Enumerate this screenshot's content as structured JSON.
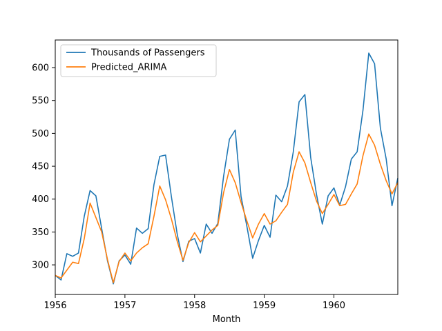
{
  "chart_data": {
    "type": "line",
    "xlabel": "Month",
    "ylabel": "",
    "xlim": [
      "1956-01",
      "1960-12"
    ],
    "ylim": [
      255,
      642
    ],
    "x_ticks": [
      "1956",
      "1957",
      "1958",
      "1959",
      "1960"
    ],
    "y_ticks": [
      300,
      350,
      400,
      450,
      500,
      550,
      600
    ],
    "grid": false,
    "legend_position": "upper-left",
    "x": [
      "1956-01",
      "1956-02",
      "1956-03",
      "1956-04",
      "1956-05",
      "1956-06",
      "1956-07",
      "1956-08",
      "1956-09",
      "1956-10",
      "1956-11",
      "1956-12",
      "1957-01",
      "1957-02",
      "1957-03",
      "1957-04",
      "1957-05",
      "1957-06",
      "1957-07",
      "1957-08",
      "1957-09",
      "1957-10",
      "1957-11",
      "1957-12",
      "1958-01",
      "1958-02",
      "1958-03",
      "1958-04",
      "1958-05",
      "1958-06",
      "1958-07",
      "1958-08",
      "1958-09",
      "1958-10",
      "1958-11",
      "1958-12",
      "1959-01",
      "1959-02",
      "1959-03",
      "1959-04",
      "1959-05",
      "1959-06",
      "1959-07",
      "1959-08",
      "1959-09",
      "1959-10",
      "1959-11",
      "1959-12",
      "1960-01",
      "1960-02",
      "1960-03",
      "1960-04",
      "1960-05",
      "1960-06",
      "1960-07",
      "1960-08",
      "1960-09",
      "1960-10",
      "1960-11",
      "1960-12"
    ],
    "series": [
      {
        "name": "Thousands of Passengers",
        "color": "#1f77b4",
        "values": [
          284,
          277,
          317,
          313,
          318,
          374,
          413,
          405,
          355,
          306,
          271,
          306,
          315,
          301,
          356,
          348,
          355,
          422,
          465,
          467,
          404,
          347,
          305,
          336,
          340,
          318,
          362,
          348,
          363,
          435,
          491,
          505,
          404,
          359,
          310,
          337,
          360,
          342,
          406,
          396,
          420,
          472,
          548,
          559,
          463,
          407,
          362,
          405,
          417,
          391,
          419,
          461,
          472,
          535,
          622,
          606,
          508,
          461,
          390,
          432
        ]
      },
      {
        "name": "Predicted_ARIMA",
        "color": "#ff7f0e",
        "values": [
          284,
          280,
          292,
          304,
          302,
          340,
          394,
          372,
          350,
          308,
          273,
          305,
          318,
          306,
          318,
          326,
          332,
          374,
          420,
          399,
          370,
          336,
          307,
          334,
          349,
          335,
          344,
          353,
          360,
          410,
          445,
          425,
          395,
          367,
          341,
          362,
          378,
          362,
          367,
          380,
          392,
          441,
          472,
          455,
          425,
          397,
          378,
          392,
          407,
          390,
          392,
          408,
          423,
          466,
          499,
          482,
          453,
          428,
          408,
          425
        ]
      }
    ]
  }
}
